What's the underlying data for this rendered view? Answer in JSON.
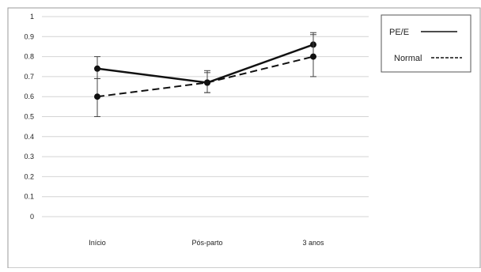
{
  "chart_data": {
    "type": "line",
    "categories": [
      "Início",
      "Pós-parto",
      "3 anos"
    ],
    "ylim": [
      0,
      1
    ],
    "yticks": [
      0,
      0.1,
      0.2,
      0.3,
      0.4,
      0.5,
      0.6,
      0.7,
      0.8,
      0.9,
      1
    ],
    "ytick_labels": [
      "0",
      "0.1",
      "0.2",
      "0.3",
      "0.4",
      "0.5",
      "0.6",
      "0.7",
      "0.8",
      "0.9",
      "1"
    ],
    "grid": true,
    "legend_position": "top-right",
    "series": [
      {
        "name": "PE/E",
        "line_style": "solid",
        "color": "#111111",
        "values": [
          0.74,
          0.67,
          0.86
        ],
        "error_low": [
          0.69,
          0.62,
          0.8
        ],
        "error_high": [
          0.8,
          0.72,
          0.92
        ]
      },
      {
        "name": "Normal",
        "line_style": "dashed",
        "color": "#111111",
        "values": [
          0.6,
          0.67,
          0.8
        ],
        "error_low": [
          0.5,
          0.62,
          0.7
        ],
        "error_high": [
          0.69,
          0.73,
          0.91
        ]
      }
    ]
  }
}
